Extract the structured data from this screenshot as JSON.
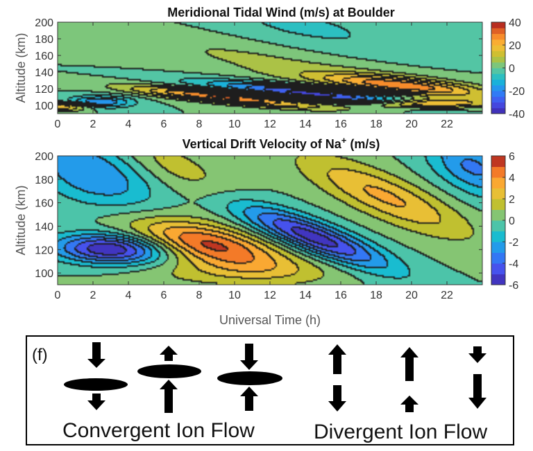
{
  "chart_data": [
    {
      "type": "heatmap",
      "title": "Meridional Tidal Wind (m/s) at Boulder",
      "ylabel": "Altitude (km)",
      "xlim": [
        0,
        24
      ],
      "ylim": [
        90,
        200
      ],
      "xticks": [
        "0",
        "2",
        "4",
        "6",
        "8",
        "10",
        "12",
        "14",
        "16",
        "18",
        "20",
        "22"
      ],
      "yticks": [
        "100",
        "120",
        "140",
        "160",
        "180",
        "200"
      ],
      "colorbar": {
        "range": [
          -40,
          40
        ],
        "ticks": [
          "40",
          "20",
          "0",
          "-20",
          "-40"
        ]
      },
      "tilted_band_description": "downward-phase-progressing tidal structure",
      "bands": [
        {
          "amp": 26,
          "y0": 123,
          "slope": -2.0,
          "t0": 19.5,
          "tw": 3.2,
          "ys": 7
        },
        {
          "amp": -34,
          "y0": 113,
          "slope": -2.0,
          "t0": 14.5,
          "tw": 4.0,
          "ys": 6
        },
        {
          "amp": 32,
          "y0": 109,
          "slope": -2.0,
          "t0": 9.5,
          "tw": 3.5,
          "ys": 5
        },
        {
          "amp": 22,
          "y0": 98,
          "slope": 0,
          "t0": 0.3,
          "tw": 1.2,
          "ys": 4
        },
        {
          "amp": -22,
          "y0": 103,
          "slope": 0,
          "t0": 2.3,
          "tw": 1.3,
          "ys": 5
        },
        {
          "amp": 26,
          "y0": 101,
          "slope": 0,
          "t0": 20.5,
          "tw": 2.5,
          "ys": 4
        },
        {
          "amp": 7,
          "y0": 150,
          "slope": -3.6,
          "t0": 13,
          "tw": 7,
          "ys": 18
        },
        {
          "amp": -6,
          "y0": 190,
          "slope": -3.6,
          "t0": 14,
          "tw": 5,
          "ys": 25
        }
      ]
    },
    {
      "type": "heatmap",
      "title": "Vertical Drift Velocity of Na",
      "title_sup": "+",
      "title_suffix": " (m/s)",
      "xlabel": "Universal Time (h)",
      "ylabel": "Altitude (km)",
      "xlim": [
        0,
        24
      ],
      "ylim": [
        90,
        200
      ],
      "xticks": [
        "0",
        "2",
        "4",
        "6",
        "8",
        "10",
        "12",
        "14",
        "16",
        "18",
        "20",
        "22"
      ],
      "yticks": [
        "100",
        "120",
        "140",
        "160",
        "180",
        "200"
      ],
      "colorbar": {
        "range": [
          -6,
          6
        ],
        "ticks": [
          "6",
          "4",
          "2",
          "0",
          "-2",
          "-4",
          "-6"
        ]
      },
      "bands": [
        {
          "amp": -6.0,
          "y0": 120,
          "slope": -0.5,
          "t0": 3.0,
          "tw": 2.2,
          "ys": 9
        },
        {
          "amp": 5.3,
          "y0": 124,
          "slope": -3.0,
          "t0": 8.5,
          "tw": 3.0,
          "ys": 12
        },
        {
          "amp": -5.6,
          "y0": 130,
          "slope": -5.5,
          "t0": 14.5,
          "tw": 3.0,
          "ys": 10
        },
        {
          "amp": 3.2,
          "y0": 165,
          "slope": -6.0,
          "t0": 18.5,
          "tw": 3.3,
          "ys": 14
        },
        {
          "amp": 1.6,
          "y0": 190,
          "slope": -6.0,
          "t0": 6.5,
          "tw": 2.5,
          "ys": 15
        },
        {
          "amp": -3.0,
          "y0": 185,
          "slope": -4.0,
          "t0": 2.0,
          "tw": 2.5,
          "ys": 20
        },
        {
          "amp": -3.2,
          "y0": 190,
          "slope": -5.0,
          "t0": 23.5,
          "tw": 1.8,
          "ys": 16
        },
        {
          "amp": 1.5,
          "y0": 100,
          "slope": 0,
          "t0": 10.0,
          "tw": 4,
          "ys": 9
        }
      ]
    }
  ],
  "panel_f": {
    "label": "(f)",
    "convergent_label": "Convergent Ion Flow",
    "divergent_label": "Divergent Ion Flow"
  }
}
